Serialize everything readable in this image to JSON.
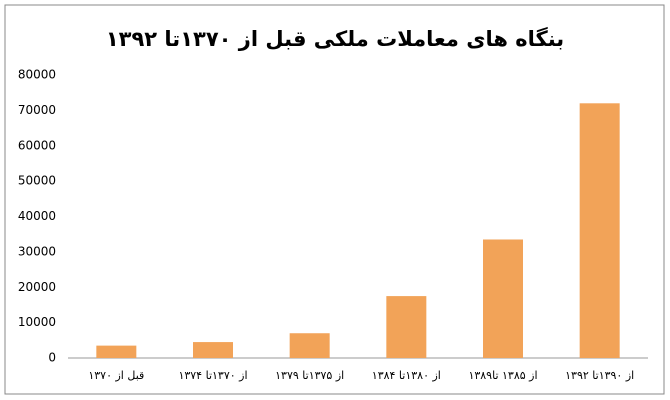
{
  "chart_data": {
    "type": "bar",
    "title": "بنگاه های معاملات ملکی قبل از ۱۳۷۰تا ۱۳۹۲",
    "categories": [
      "قبل از ۱۳۷۰",
      "از ۱۳۷۰تا ۱۳۷۴",
      "از ۱۳۷۵تا ۱۳۷۹",
      "از ۱۳۸۰تا ۱۳۸۴",
      "از ۱۳۸۵ تا۱۳۸۹",
      "از ۱۳۹۰تا ۱۳۹۲"
    ],
    "values": [
      3500,
      4500,
      7000,
      17500,
      33500,
      72000
    ],
    "color": "#f2a358",
    "ylim": [
      0,
      80000
    ],
    "yticks": [
      0,
      10000,
      20000,
      30000,
      40000,
      50000,
      60000,
      70000,
      80000
    ],
    "grid": false
  }
}
